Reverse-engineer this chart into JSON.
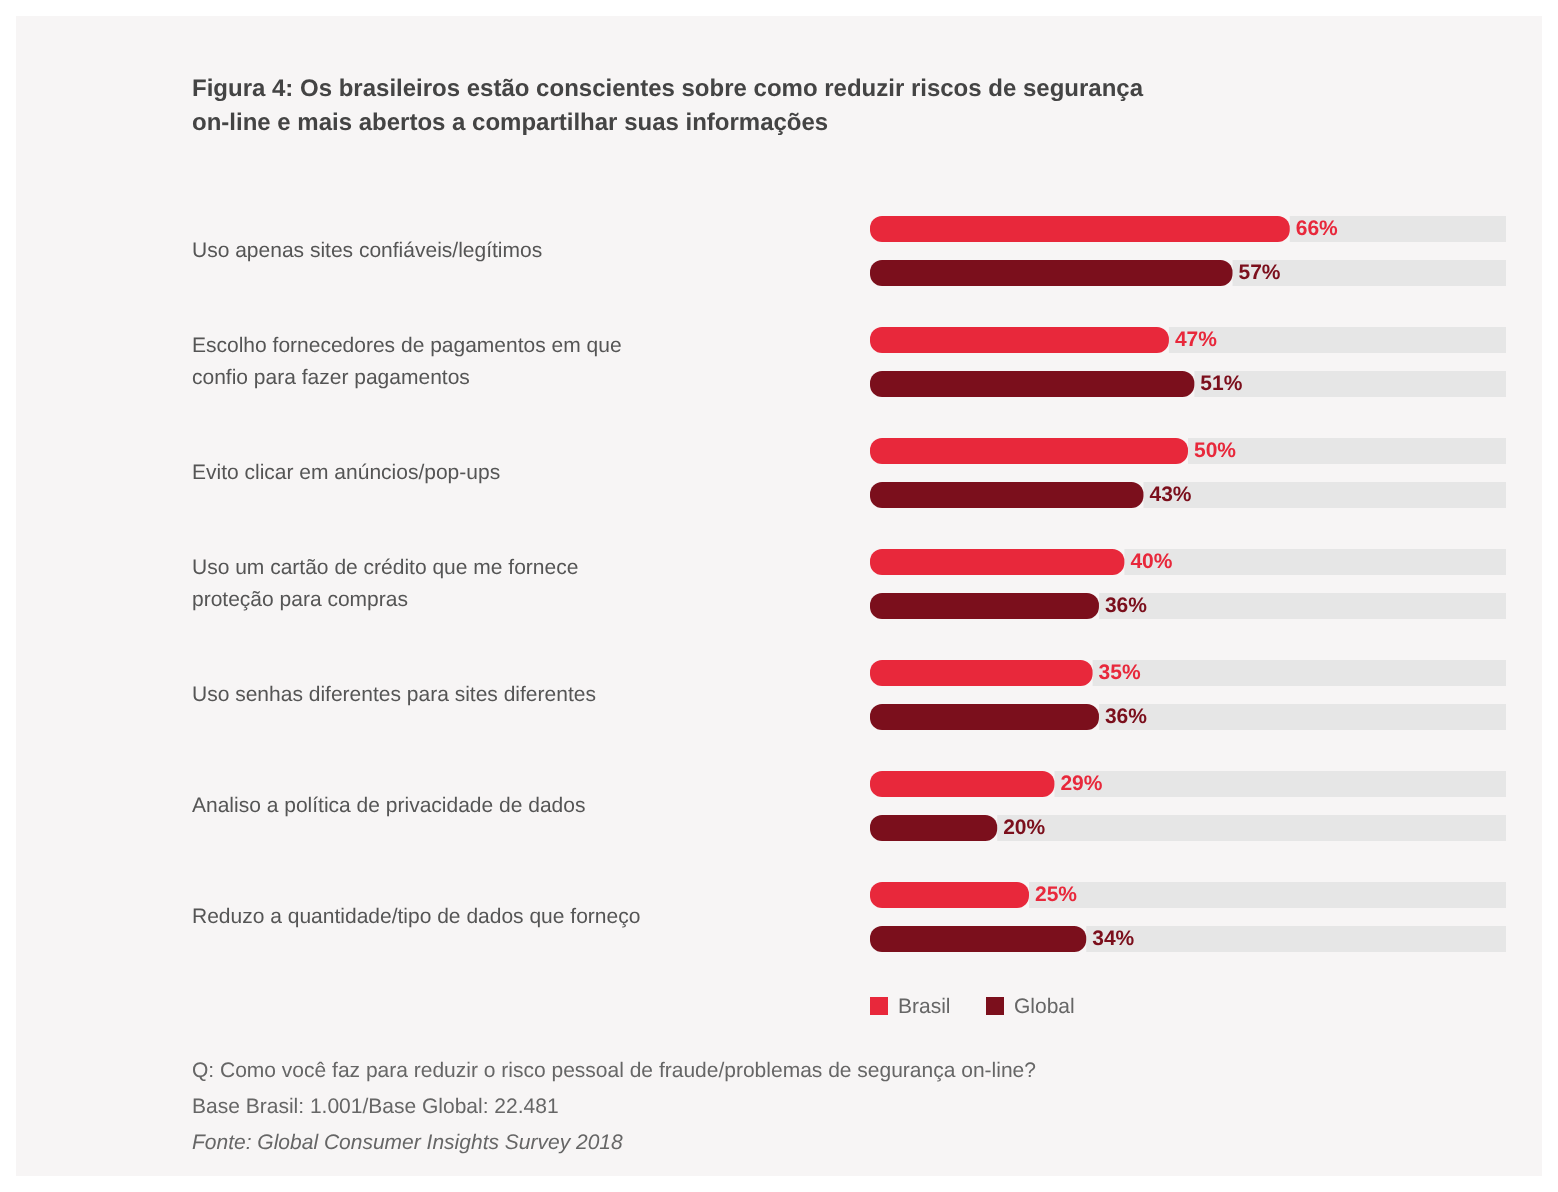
{
  "chart_data": {
    "type": "bar",
    "orientation": "horizontal",
    "title": "Figura 4: Os brasileiros estão conscientes sobre como reduzir riscos de segurança on-line e mais abertos a compartilhar suas informações",
    "categories": [
      "Uso apenas sites confiáveis/legítimos",
      "Escolho fornecedores de pagamentos em que confio para fazer pagamentos",
      "Evito clicar em anúncios/pop-ups",
      "Uso um cartão de crédito que me fornece proteção para compras",
      "Uso senhas diferentes para sites diferentes",
      "Analiso a política de privacidade de dados",
      "Reduzo a quantidade/tipo de dados que forneço"
    ],
    "series": [
      {
        "name": "Brasil",
        "color": "#e8283b",
        "values": [
          66,
          47,
          50,
          40,
          35,
          29,
          25
        ],
        "value_labels": [
          "66%",
          "47%",
          "50%",
          "40%",
          "35%",
          "29%",
          "25%"
        ]
      },
      {
        "name": "Global",
        "color": "#7b0f1c",
        "values": [
          57,
          51,
          43,
          36,
          36,
          20,
          34
        ],
        "value_labels": [
          "57%",
          "51%",
          "43%",
          "36%",
          "36%",
          "20%",
          "34%"
        ]
      }
    ],
    "xlim": [
      0,
      100
    ],
    "legend": "bottom",
    "annotations": [
      "Q: Como você faz para reduzir o risco pessoal de fraude/problemas de segurança on-line?",
      "Base Brasil: 1.001/Base Global: 22.481",
      "Fonte: Global Consumer Insights Survey 2018"
    ]
  }
}
